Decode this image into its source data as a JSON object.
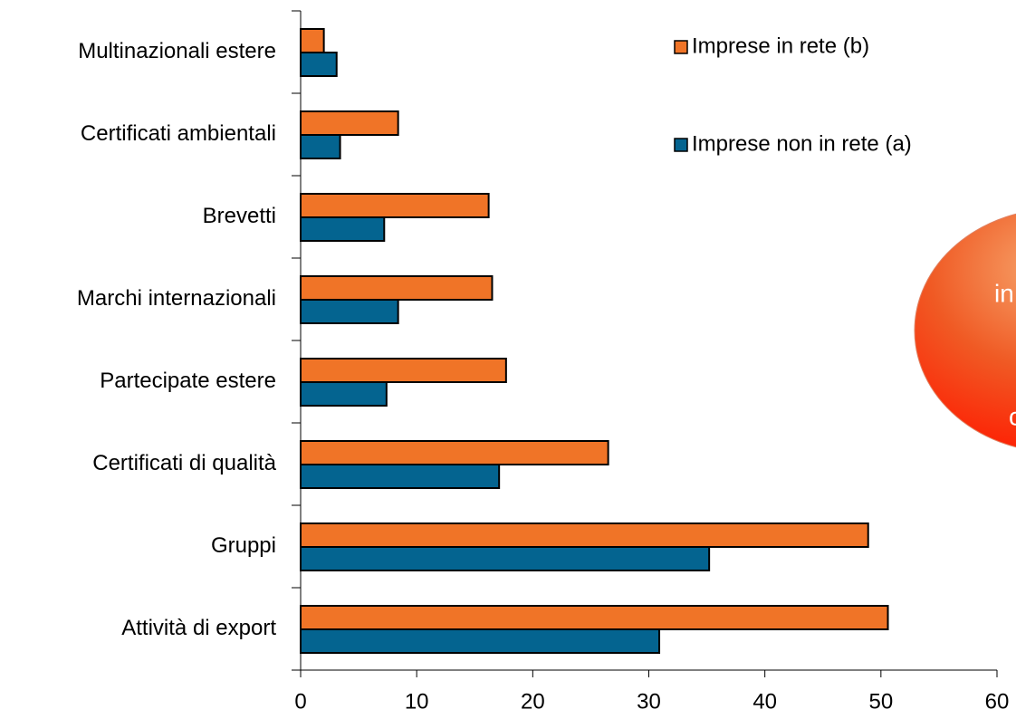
{
  "chart_data": {
    "type": "hbar",
    "categories": [
      "Multinazionali estere",
      "Certificati ambientali",
      "Brevetti",
      "Marchi internazionali",
      "Partecipate estere",
      "Certificati di qualità",
      "Gruppi",
      "Attività di export"
    ],
    "series": [
      {
        "name": "Imprese in rete (b)",
        "color": "#f07427",
        "values": [
          2.0,
          8.4,
          16.2,
          16.5,
          17.7,
          26.5,
          48.9,
          50.6
        ]
      },
      {
        "name": "Imprese non in rete (a)",
        "color": "#046490",
        "values": [
          3.1,
          3.4,
          7.2,
          8.4,
          7.4,
          17.1,
          35.2,
          30.9
        ]
      }
    ],
    "xlim": [
      0,
      60
    ],
    "xticks": [
      0,
      10,
      20,
      30,
      40,
      50,
      60
    ],
    "legend": "top-right",
    "annotations": [
      "in",
      "c"
    ]
  }
}
